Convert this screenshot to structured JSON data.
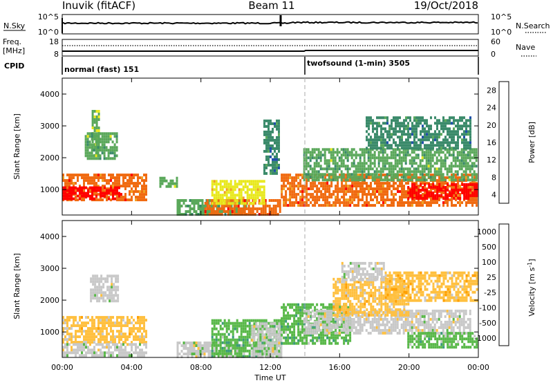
{
  "header": {
    "station": "Inuvik (fitACF)",
    "beam": "Beam 11",
    "date": "19/Oct/2018"
  },
  "noise_panel": {
    "left_label": "N.Sky",
    "left_ticks": [
      "10^5",
      "10^0"
    ],
    "right_ticks": [
      "10^5",
      "10^0"
    ],
    "right_label": "N.Search"
  },
  "freq_panel": {
    "left_label_1": "Freq.",
    "left_label_2": "[MHz]",
    "left_ticks": [
      "18",
      "8"
    ],
    "right_ticks": [
      "60",
      "0"
    ],
    "right_label": "Nave"
  },
  "cpid_panel": {
    "label": "CPID",
    "modes": [
      {
        "name": "normal (fast) 151",
        "start": "00:00"
      },
      {
        "name": "twofsound (1-min) 3505",
        "start": "14:00"
      }
    ]
  },
  "colors": {
    "power_scale": [
      "#0000ff",
      "#1f4fa8",
      "#3a8a6a",
      "#5aa85a",
      "#e8e81c",
      "#f0a020",
      "#f06a10",
      "#ff0000"
    ],
    "velocity_scale": [
      "#ff0000",
      "#ff6a00",
      "#ffa000",
      "#ffc040",
      "#c8c8c8",
      "#58b848",
      "#3a9a7a",
      "#2c6aa8",
      "#1a3ab8"
    ]
  },
  "chart_data": [
    {
      "type": "heatmap",
      "quantity": "power",
      "xlabel": "Time UT",
      "ylabel": "Slant Range [km]",
      "xticks": [
        "00:00",
        "04:00",
        "08:00",
        "12:00",
        "16:00",
        "20:00",
        "00:00"
      ],
      "yticks": [
        "1000",
        "2000",
        "3000",
        "4000"
      ],
      "ylim": [
        200,
        4500
      ],
      "colorbar": {
        "label": "Power [dB]",
        "ticks": [
          "28",
          "24",
          "20",
          "16",
          "12",
          "8",
          "4"
        ],
        "range": [
          0,
          30
        ]
      },
      "regions": [
        {
          "t0": 0.0,
          "t1": 4.9,
          "r0": 650,
          "r1": 1500,
          "value": 24
        },
        {
          "t0": 0.0,
          "t1": 3.3,
          "r0": 700,
          "r1": 1100,
          "value": 30
        },
        {
          "t0": 1.7,
          "t1": 2.1,
          "r0": 2100,
          "r1": 3500,
          "value": 14
        },
        {
          "t0": 1.3,
          "t1": 3.2,
          "r0": 2000,
          "r1": 2800,
          "value": 12
        },
        {
          "t0": 5.6,
          "t1": 6.6,
          "r0": 1100,
          "r1": 1400,
          "value": 14
        },
        {
          "t0": 6.6,
          "t1": 10.6,
          "r0": 250,
          "r1": 700,
          "value": 12
        },
        {
          "t0": 8.2,
          "t1": 12.6,
          "r0": 250,
          "r1": 700,
          "value": 26
        },
        {
          "t0": 8.6,
          "t1": 11.7,
          "r0": 550,
          "r1": 1300,
          "value": 18
        },
        {
          "t0": 11.6,
          "t1": 12.5,
          "r0": 1500,
          "r1": 3200,
          "value": 10
        },
        {
          "t0": 12.6,
          "t1": 23.9,
          "r0": 500,
          "r1": 1500,
          "value": 24
        },
        {
          "t0": 13.9,
          "t1": 23.9,
          "r0": 1300,
          "r1": 2300,
          "value": 12
        },
        {
          "t0": 17.5,
          "t1": 23.5,
          "r0": 2300,
          "r1": 3300,
          "value": 10
        },
        {
          "t0": 19.9,
          "t1": 23.9,
          "r0": 700,
          "r1": 1200,
          "value": 28
        }
      ]
    },
    {
      "type": "heatmap",
      "quantity": "velocity",
      "xlabel": "Time UT",
      "ylabel": "Slant Range [km]",
      "xticks": [
        "00:00",
        "04:00",
        "08:00",
        "12:00",
        "16:00",
        "20:00",
        "00:00"
      ],
      "yticks": [
        "1000",
        "2000",
        "3000",
        "4000"
      ],
      "ylim": [
        200,
        4500
      ],
      "colorbar": {
        "label": "Velocity [m s^-1]",
        "ticks": [
          "1000",
          "500",
          "100",
          "25",
          "-25",
          "-100",
          "-500",
          "-1000"
        ],
        "range": [
          -1000,
          1000
        ]
      },
      "regions": [
        {
          "t0": 0.0,
          "t1": 4.9,
          "r0": 700,
          "r1": 1500,
          "value": -150
        },
        {
          "t0": 1.6,
          "t1": 3.2,
          "r0": 2000,
          "r1": 2800,
          "value": 0
        },
        {
          "t0": 0.0,
          "t1": 4.9,
          "r0": 250,
          "r1": 650,
          "value": 60
        },
        {
          "t0": 6.6,
          "t1": 10.5,
          "r0": 250,
          "r1": 700,
          "value": 60
        },
        {
          "t0": 8.6,
          "t1": 12.6,
          "r0": 250,
          "r1": 1400,
          "value": 300
        },
        {
          "t0": 10.9,
          "t1": 12.6,
          "r0": 250,
          "r1": 1300,
          "value": 0
        },
        {
          "t0": 12.6,
          "t1": 16.6,
          "r0": 600,
          "r1": 1900,
          "value": 300
        },
        {
          "t0": 13.9,
          "t1": 23.5,
          "r0": 1000,
          "r1": 1700,
          "value": 0
        },
        {
          "t0": 15.6,
          "t1": 20.0,
          "r0": 1500,
          "r1": 2700,
          "value": -200
        },
        {
          "t0": 18.6,
          "t1": 23.9,
          "r0": 2000,
          "r1": 2900,
          "value": -250
        },
        {
          "t0": 19.9,
          "t1": 23.9,
          "r0": 500,
          "r1": 1000,
          "value": 200
        },
        {
          "t0": 16.1,
          "t1": 18.5,
          "r0": 2600,
          "r1": 3200,
          "value": 0
        }
      ]
    }
  ]
}
